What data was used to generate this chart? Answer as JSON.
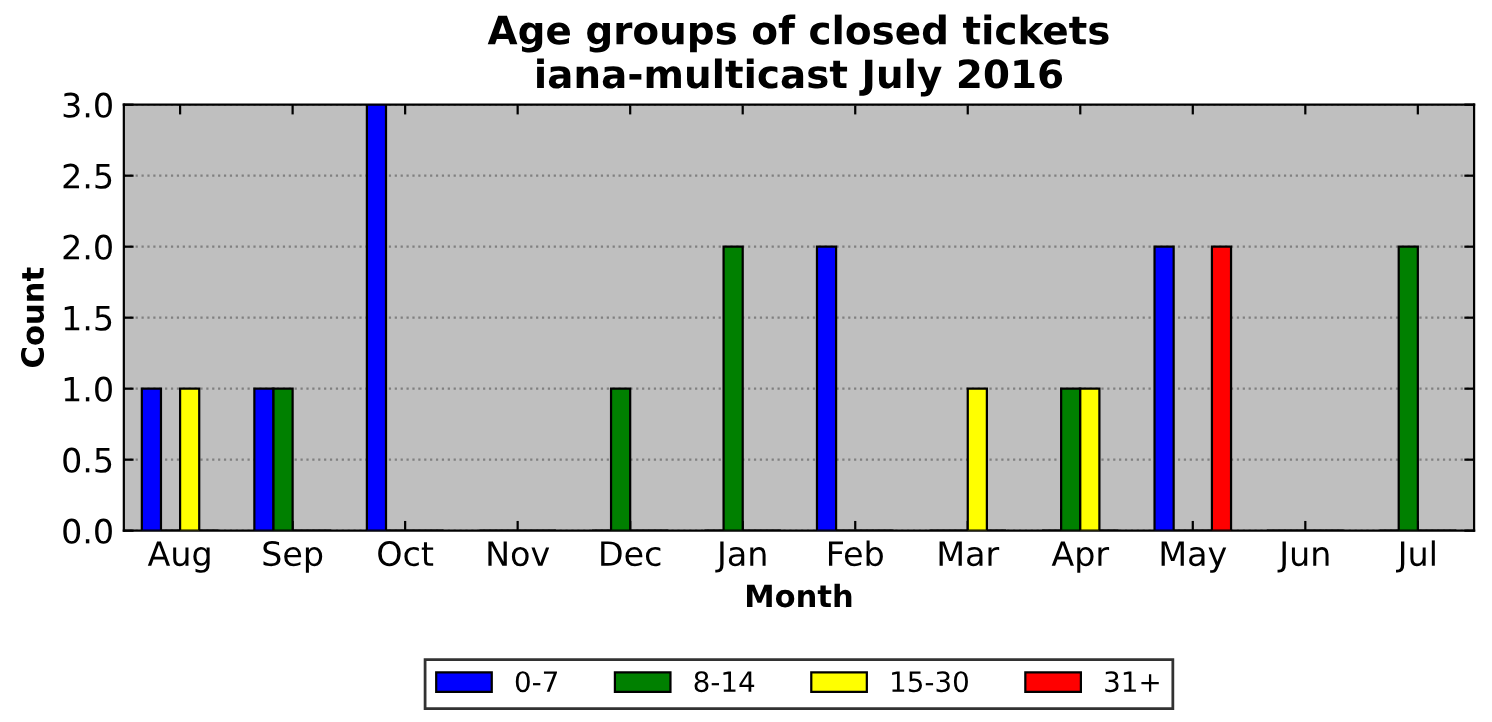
{
  "chart_data": {
    "type": "bar",
    "title": "Age groups of closed tickets\niana-multicast July 2016",
    "xlabel": "Month",
    "ylabel": "Count",
    "categories": [
      "Aug",
      "Sep",
      "Oct",
      "Nov",
      "Dec",
      "Jan",
      "Feb",
      "Mar",
      "Apr",
      "May",
      "Jun",
      "Jul"
    ],
    "series": [
      {
        "name": "0-7",
        "color": "#0000ff",
        "values": [
          1,
          1,
          3,
          0,
          0,
          0,
          2,
          0,
          0,
          2,
          0,
          0
        ]
      },
      {
        "name": "8-14",
        "color": "#008000",
        "values": [
          0,
          1,
          0,
          0,
          1,
          2,
          0,
          0,
          1,
          0,
          0,
          2
        ]
      },
      {
        "name": "15-30",
        "color": "#ffff00",
        "values": [
          1,
          0,
          0,
          0,
          0,
          0,
          0,
          1,
          1,
          0,
          0,
          0
        ]
      },
      {
        "name": "31+",
        "color": "#ff0000",
        "values": [
          0,
          0,
          0,
          0,
          0,
          0,
          0,
          0,
          0,
          2,
          0,
          0
        ]
      }
    ],
    "ylim": [
      0,
      3
    ],
    "yticks": [
      {
        "value": 0,
        "label": "0.0"
      },
      {
        "value": 0.5,
        "label": "0.5"
      },
      {
        "value": 1,
        "label": "1.0"
      },
      {
        "value": 1.5,
        "label": "1.5"
      },
      {
        "value": 2,
        "label": "2.0"
      },
      {
        "value": 2.5,
        "label": "2.5"
      },
      {
        "value": 3,
        "label": "3.0"
      }
    ],
    "grid": "y",
    "legend": "bottom"
  }
}
